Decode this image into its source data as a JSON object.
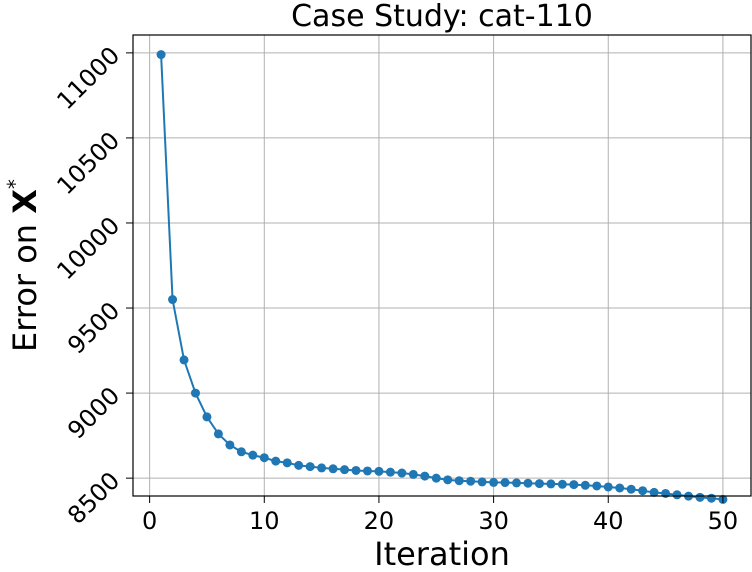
{
  "chart_data": {
    "type": "line",
    "title": "Case Study: cat-110",
    "xlabel": "Iteration",
    "ylabel": "Error on ",
    "ylabel_math": "X",
    "ylabel_sup": "*",
    "xlim": [
      -1.45,
      52.45
    ],
    "ylim": [
      8395,
      11105
    ],
    "grid": true,
    "xticks": [
      0,
      10,
      20,
      30,
      40,
      50
    ],
    "yticks": [
      8500,
      9000,
      9500,
      10000,
      10500,
      11000
    ],
    "series": [
      {
        "color": "#1f77b4",
        "marker": "circle",
        "x": [
          1,
          2,
          3,
          4,
          5,
          6,
          7,
          8,
          9,
          10,
          11,
          12,
          13,
          14,
          15,
          16,
          17,
          18,
          19,
          20,
          21,
          22,
          23,
          24,
          25,
          26,
          27,
          28,
          29,
          30,
          31,
          32,
          33,
          34,
          35,
          36,
          37,
          38,
          39,
          40,
          41,
          42,
          43,
          44,
          45,
          46,
          47,
          48,
          49,
          50
        ],
        "y": [
          10990,
          9550,
          9195,
          9000,
          8860,
          8760,
          8695,
          8655,
          8635,
          8620,
          8600,
          8590,
          8575,
          8568,
          8560,
          8555,
          8550,
          8545,
          8542,
          8540,
          8535,
          8530,
          8522,
          8512,
          8500,
          8490,
          8485,
          8482,
          8478,
          8475,
          8474,
          8472,
          8470,
          8468,
          8466,
          8464,
          8462,
          8458,
          8454,
          8448,
          8442,
          8435,
          8426,
          8416,
          8410,
          8402,
          8394,
          8387,
          8382,
          8375
        ]
      }
    ]
  }
}
